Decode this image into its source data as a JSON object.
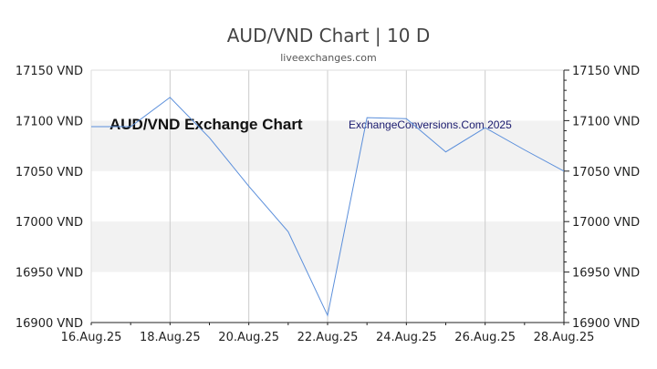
{
  "header": {
    "title": "AUD/VND Chart | 10 D",
    "subtitle": "liveexchanges.com"
  },
  "watermarks": {
    "left": "AUD/VND Exchange Chart",
    "right": "ExchangeConversions.Com 2025"
  },
  "colors": {
    "line": "#5b8fdb",
    "band": "#f2f2f2",
    "grid": "#cccccc",
    "axis": "#222222"
  },
  "chart_data": {
    "type": "line",
    "title": "AUD/VND Chart | 10 D",
    "xlabel": "",
    "ylabel": "",
    "x_ticks": [
      "16.Aug.25",
      "18.Aug.25",
      "20.Aug.25",
      "22.Aug.25",
      "24.Aug.25",
      "26.Aug.25",
      "28.Aug.25"
    ],
    "y_ticks": [
      "16900 VND",
      "16950 VND",
      "17000 VND",
      "17050 VND",
      "17100 VND",
      "17150 VND"
    ],
    "ylim": [
      16900,
      17150
    ],
    "grid": "vertical lines at labeled dates; alternating horizontal bands",
    "series": [
      {
        "x": [
          "16.Aug.25",
          "17.Aug.25",
          "18.Aug.25",
          "19.Aug.25",
          "20.Aug.25",
          "21.Aug.25",
          "22.Aug.25",
          "23.Aug.25",
          "24.Aug.25",
          "25.Aug.25",
          "26.Aug.25",
          "27.Aug.25",
          "28.Aug.25"
        ],
        "values": [
          17094,
          17094,
          17123,
          17083,
          17035,
          16990,
          16907,
          17103,
          17102,
          17069,
          17093,
          17071,
          17050
        ]
      }
    ]
  }
}
